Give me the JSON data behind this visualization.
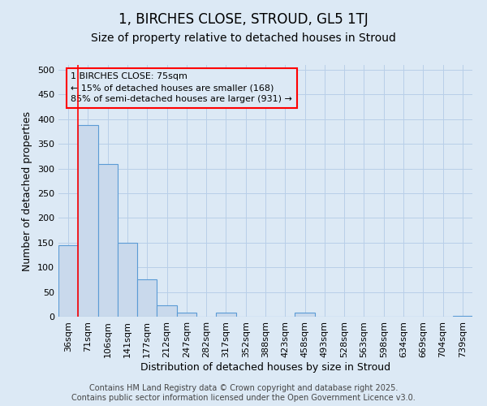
{
  "title": "1, BIRCHES CLOSE, STROUD, GL5 1TJ",
  "subtitle": "Size of property relative to detached houses in Stroud",
  "xlabel": "Distribution of detached houses by size in Stroud",
  "ylabel": "Number of detached properties",
  "categories": [
    "36sqm",
    "71sqm",
    "106sqm",
    "141sqm",
    "177sqm",
    "212sqm",
    "247sqm",
    "282sqm",
    "317sqm",
    "352sqm",
    "388sqm",
    "423sqm",
    "458sqm",
    "493sqm",
    "528sqm",
    "563sqm",
    "598sqm",
    "634sqm",
    "669sqm",
    "704sqm",
    "739sqm"
  ],
  "bar_values": [
    145,
    388,
    310,
    150,
    75,
    23,
    8,
    0,
    8,
    0,
    0,
    0,
    8,
    0,
    0,
    0,
    0,
    0,
    0,
    0,
    2
  ],
  "bar_color": "#c9d9ec",
  "bar_edge_color": "#5b9bd5",
  "bar_edge_width": 0.8,
  "grid_color": "#b8cfe8",
  "background_color": "#dce9f5",
  "red_line_x": 0.5,
  "annotation_text": "1 BIRCHES CLOSE: 75sqm\n← 15% of detached houses are smaller (168)\n85% of semi-detached houses are larger (931) →",
  "ylim": [
    0,
    510
  ],
  "yticks": [
    0,
    50,
    100,
    150,
    200,
    250,
    300,
    350,
    400,
    450,
    500
  ],
  "footer": "Contains HM Land Registry data © Crown copyright and database right 2025.\nContains public sector information licensed under the Open Government Licence v3.0.",
  "title_fontsize": 12,
  "subtitle_fontsize": 10,
  "label_fontsize": 9,
  "tick_fontsize": 8,
  "annot_fontsize": 8,
  "footer_fontsize": 7
}
